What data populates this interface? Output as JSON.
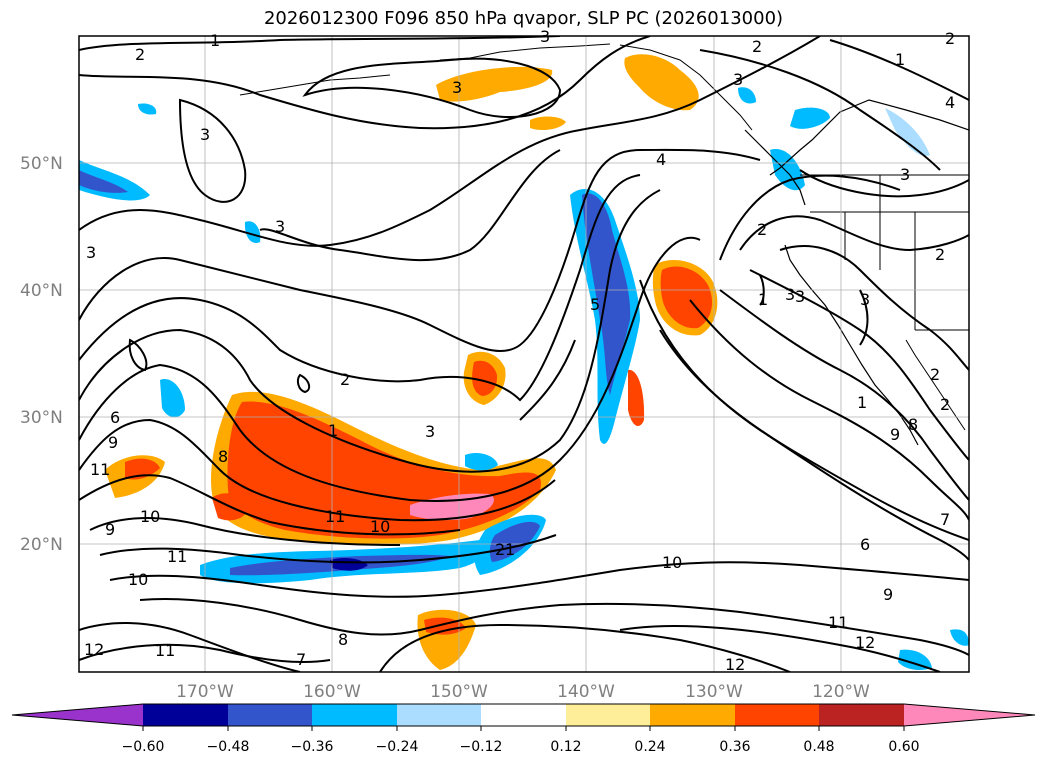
{
  "title": "2026012300 F096 850 hPa qvapor, SLP PC (2026013000)",
  "lat_labels": [
    "50°N",
    "40°N",
    "30°N",
    "20°N"
  ],
  "lon_labels": [
    "170°W",
    "160°W",
    "150°W",
    "140°W",
    "130°W",
    "120°W"
  ],
  "colorbar": {
    "colors": [
      "#9933cc",
      "#000099",
      "#3355cc",
      "#00bbff",
      "#aaddff",
      "#ffffff",
      "#ffee99",
      "#ffaa00",
      "#ff4400",
      "#bb2222",
      "#ff88bb"
    ],
    "tick_labels": [
      "−0.60",
      "−0.48",
      "−0.36",
      "−0.24",
      "−0.12",
      "0.12",
      "0.24",
      "0.36",
      "0.48",
      "0.60"
    ]
  },
  "contour_labels": [
    "1",
    "2",
    "3",
    "3",
    "2",
    "1",
    "3",
    "3",
    "4",
    "2",
    "1",
    "3",
    "3",
    "3",
    "3",
    "2",
    "1",
    "3",
    "2",
    "2",
    "5",
    "3",
    "4",
    "2",
    "3",
    "1",
    "6",
    "9",
    "11",
    "8",
    "10",
    "9",
    "11",
    "10",
    "11",
    "8",
    "7",
    "12",
    "10",
    "9",
    "11",
    "12",
    "12",
    "6",
    "7",
    "8",
    "9",
    "10",
    "11",
    "2",
    "2",
    "1"
  ]
}
